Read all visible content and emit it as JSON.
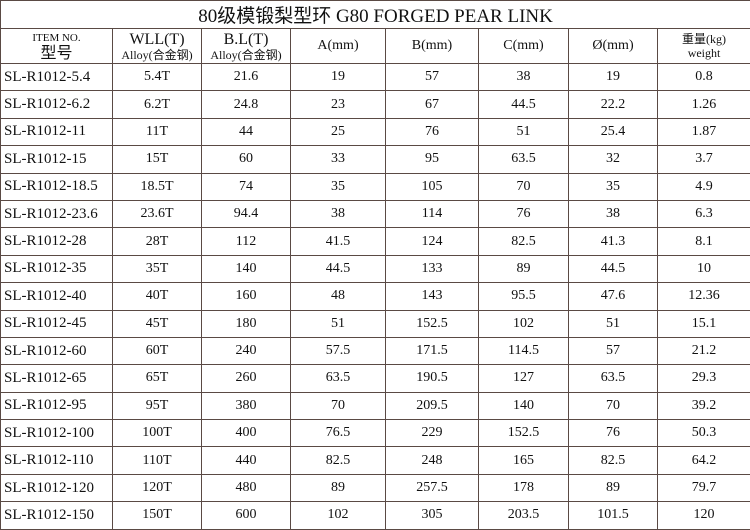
{
  "title": "80级模锻梨型环 G80 FORGED PEAR LINK",
  "headers": {
    "item": [
      "ITEM NO.",
      "型号"
    ],
    "wll": [
      "WLL(T)",
      "Alloy(合金钢)"
    ],
    "bl": [
      "B.L(T)",
      "Alloy(合金钢)"
    ],
    "a": "A(mm)",
    "b": "B(mm)",
    "c": "C(mm)",
    "d": "Ø(mm)",
    "weight": [
      "重量(kg)",
      "weight"
    ]
  },
  "rows": [
    [
      "SL-R1012-5.4",
      "5.4T",
      "21.6",
      "19",
      "57",
      "38",
      "19",
      "0.8"
    ],
    [
      "SL-R1012-6.2",
      "6.2T",
      "24.8",
      "23",
      "67",
      "44.5",
      "22.2",
      "1.26"
    ],
    [
      "SL-R1012-11",
      "11T",
      "44",
      "25",
      "76",
      "51",
      "25.4",
      "1.87"
    ],
    [
      "SL-R1012-15",
      "15T",
      "60",
      "33",
      "95",
      "63.5",
      "32",
      "3.7"
    ],
    [
      "SL-R1012-18.5",
      "18.5T",
      "74",
      "35",
      "105",
      "70",
      "35",
      "4.9"
    ],
    [
      "SL-R1012-23.6",
      "23.6T",
      "94.4",
      "38",
      "114",
      "76",
      "38",
      "6.3"
    ],
    [
      "SL-R1012-28",
      "28T",
      "112",
      "41.5",
      "124",
      "82.5",
      "41.3",
      "8.1"
    ],
    [
      "SL-R1012-35",
      "35T",
      "140",
      "44.5",
      "133",
      "89",
      "44.5",
      "10"
    ],
    [
      "SL-R1012-40",
      "40T",
      "160",
      "48",
      "143",
      "95.5",
      "47.6",
      "12.36"
    ],
    [
      "SL-R1012-45",
      "45T",
      "180",
      "51",
      "152.5",
      "102",
      "51",
      "15.1"
    ],
    [
      "SL-R1012-60",
      "60T",
      "240",
      "57.5",
      "171.5",
      "114.5",
      "57",
      "21.2"
    ],
    [
      "SL-R1012-65",
      "65T",
      "260",
      "63.5",
      "190.5",
      "127",
      "63.5",
      "29.3"
    ],
    [
      "SL-R1012-95",
      "95T",
      "380",
      "70",
      "209.5",
      "140",
      "70",
      "39.2"
    ],
    [
      "SL-R1012-100",
      "100T",
      "400",
      "76.5",
      "229",
      "152.5",
      "76",
      "50.3"
    ],
    [
      "SL-R1012-110",
      "110T",
      "440",
      "82.5",
      "248",
      "165",
      "82.5",
      "64.2"
    ],
    [
      "SL-R1012-120",
      "120T",
      "480",
      "89",
      "257.5",
      "178",
      "89",
      "79.7"
    ],
    [
      "SL-R1012-150",
      "150T",
      "600",
      "102",
      "305",
      "203.5",
      "101.5",
      "120"
    ]
  ]
}
